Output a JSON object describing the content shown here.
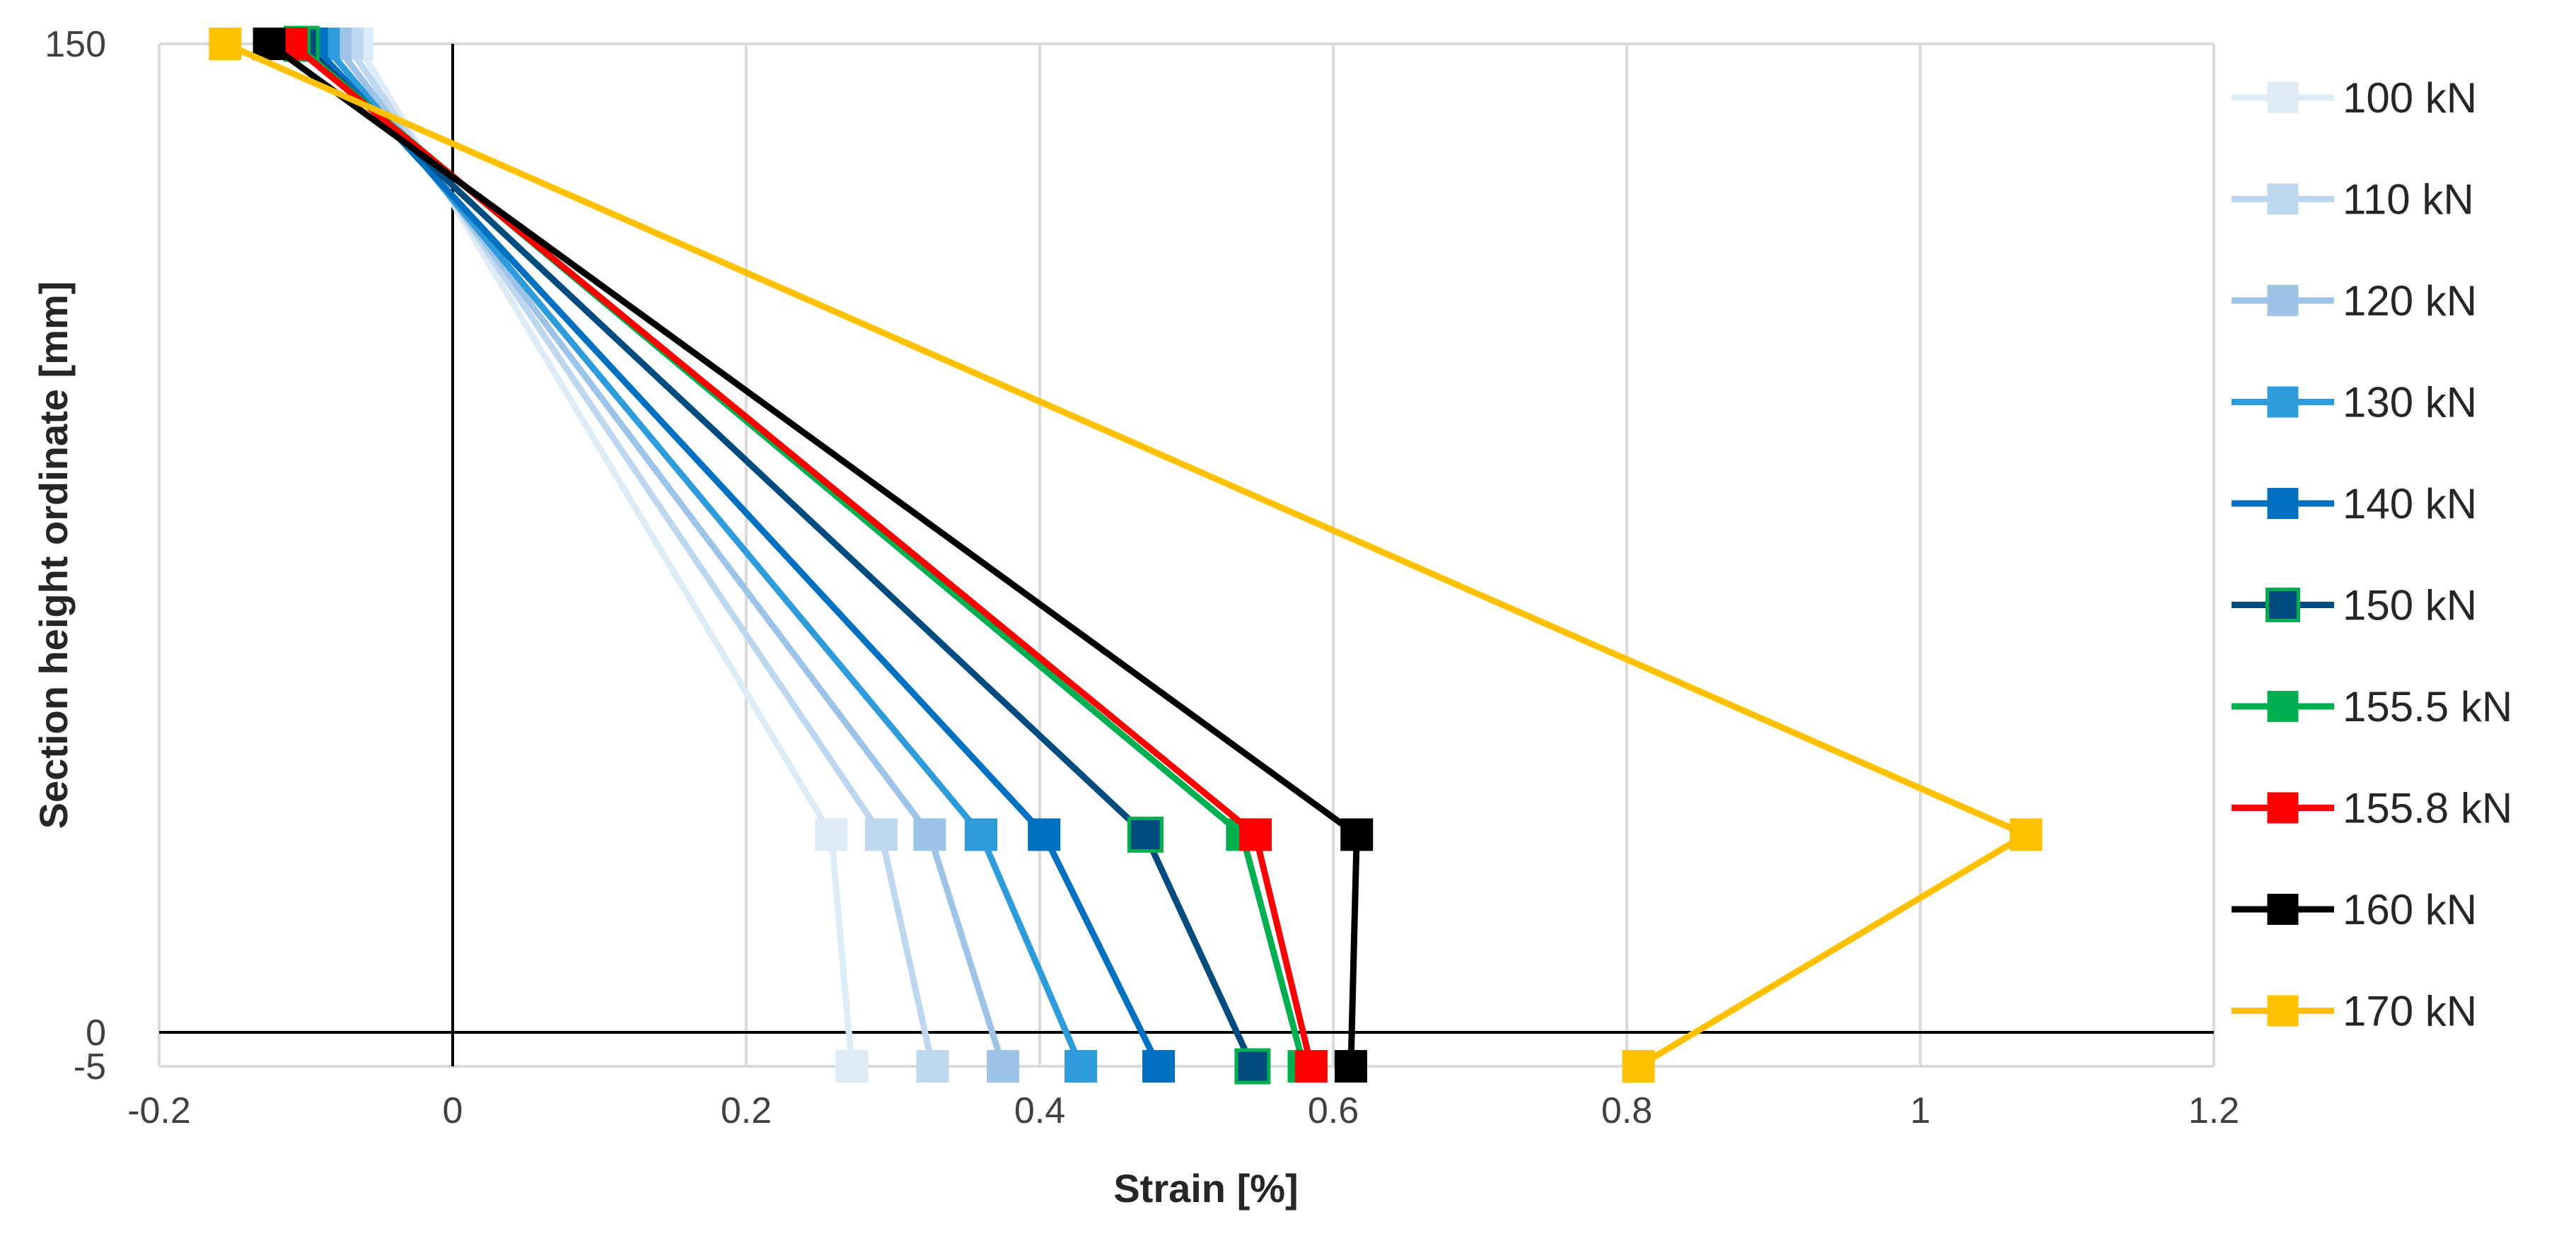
{
  "chart_data": {
    "type": "line",
    "xlabel": "Strain [%]",
    "ylabel": "Section height ordinate [mm]",
    "xlim": [
      -0.2,
      1.2
    ],
    "x_ticks": [
      "-0.2",
      "0",
      "0.2",
      "0.4",
      "0.6",
      "0.8",
      "1",
      "1.2"
    ],
    "y_ticks": [
      "150",
      "0",
      "-5"
    ],
    "y_tick_values": [
      150,
      0,
      -5
    ],
    "grid": "vertical",
    "legend_position": "right",
    "series": [
      {
        "name": "100 kN",
        "color": "#DDEBF7",
        "points": [
          [
            -0.065,
            150
          ],
          [
            0.258,
            30
          ],
          [
            0.272,
            -5
          ]
        ]
      },
      {
        "name": "110 kN",
        "color": "#BDD7EE",
        "points": [
          [
            -0.072,
            150
          ],
          [
            0.292,
            30
          ],
          [
            0.327,
            -5
          ]
        ]
      },
      {
        "name": "120 kN",
        "color": "#9DC3E6",
        "points": [
          [
            -0.08,
            150
          ],
          [
            0.325,
            30
          ],
          [
            0.375,
            -5
          ]
        ]
      },
      {
        "name": "130 kN",
        "color": "#2E9BDB",
        "points": [
          [
            -0.088,
            150
          ],
          [
            0.36,
            30
          ],
          [
            0.428,
            -5
          ]
        ]
      },
      {
        "name": "140 kN",
        "color": "#0070C0",
        "points": [
          [
            -0.096,
            150
          ],
          [
            0.403,
            30
          ],
          [
            0.481,
            -5
          ]
        ]
      },
      {
        "name": "150 kN",
        "color": "#004C7F",
        "marker_edge": "#00B050",
        "points": [
          [
            -0.103,
            150
          ],
          [
            0.472,
            30
          ],
          [
            0.545,
            -5
          ]
        ]
      },
      {
        "name": "155.5 kN",
        "color": "#00B050",
        "points": [
          [
            -0.108,
            150
          ],
          [
            0.538,
            30
          ],
          [
            0.58,
            -5
          ]
        ]
      },
      {
        "name": "155.8 kN",
        "color": "#FF0000",
        "points": [
          [
            -0.11,
            150
          ],
          [
            0.547,
            30
          ],
          [
            0.585,
            -5
          ]
        ]
      },
      {
        "name": "160 kN",
        "color": "#000000",
        "points": [
          [
            -0.125,
            150
          ],
          [
            0.616,
            30
          ],
          [
            0.612,
            -5
          ]
        ]
      },
      {
        "name": "170 kN",
        "color": "#FFC000",
        "points": [
          [
            -0.155,
            150
          ],
          [
            1.072,
            30
          ],
          [
            0.808,
            -5
          ]
        ]
      }
    ]
  }
}
